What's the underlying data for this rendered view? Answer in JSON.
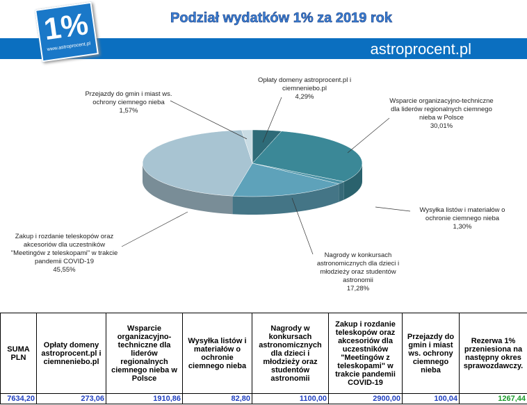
{
  "header": {
    "title": "Podział wydatków 1% za 2019 rok",
    "logo_text": "1%",
    "logo_url": "www.astroprocent.pl",
    "site": "astroprocent.pl"
  },
  "chart_data": {
    "type": "pie3d",
    "categories": [
      "Opłaty domeny astroprocent.pl i ciemneniebo.pl",
      "Wsparcie organizacyjno-techniczne dla liderów regionalnych ciemnego nieba w Polsce",
      "Wysyłka listów i materiałów o ochronie ciemnego nieba",
      "Nagrody w konkursach astronomicznych dla dzieci i młodzieży oraz studentów astronomii",
      "Zakup i rozdanie teleskopów oraz akcesoriów dla uczestników \"Meetingów z teleskopami\" w trakcie pandemii COVID-19",
      "Przejazdy do gmin i miast ws. ochrony ciemnego nieba"
    ],
    "values": [
      4.29,
      30.01,
      1.3,
      17.28,
      45.55,
      1.57
    ],
    "value_labels": [
      "4,29%",
      "30,01%",
      "1,30%",
      "17,28%",
      "45,55%",
      "1,57%"
    ],
    "colors": [
      "#2e6b78",
      "#3b8897",
      "#4b93a6",
      "#5ea2ba",
      "#a8c4d2",
      "#c9dce4"
    ]
  },
  "table": {
    "header": [
      "SUMA PLN",
      "Opłaty domeny astroprocent.pl i ciemneniebo.pl",
      "Wsparcie organizacyjno-techniczne dla liderów regionalnych ciemnego nieba w Polsce",
      "Wysyłka listów i materiałów o ochronie ciemnego nieba",
      "Nagrody w konkursach astronomicznych dla dzieci i młodzieży oraz studentów astronomii",
      "Zakup i rozdanie teleskopów oraz akcesoriów dla uczestników \"Meetingów z teleskopami\" w trakcie pandemii COVID-19",
      "Przejazdy do gmin i miast ws. ochrony ciemnego nieba",
      "Rezerwa 1% przeniesiona na następny okres sprawozdawczy."
    ],
    "row": [
      "7634,20",
      "273,06",
      "1910,86",
      "82,80",
      "1100,00",
      "2900,00",
      "100,04",
      "1267,44"
    ]
  }
}
